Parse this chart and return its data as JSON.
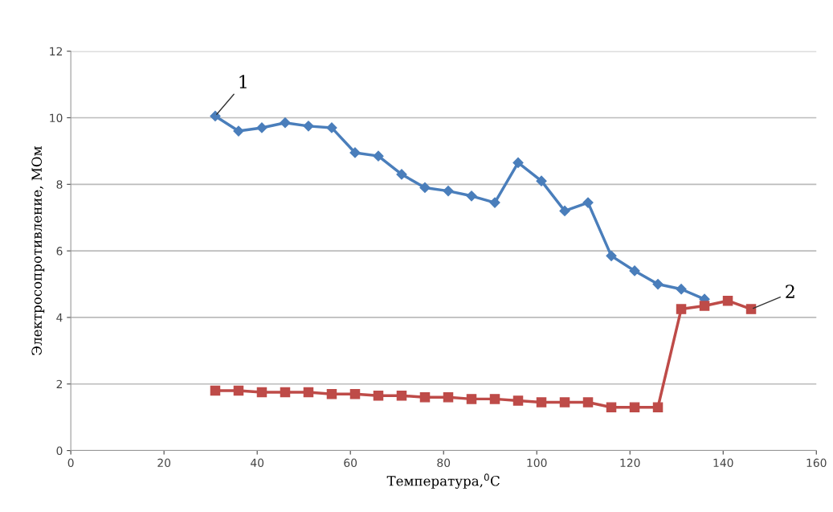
{
  "chart_data": {
    "type": "line",
    "xlabel": "Температура,$^{0}$С",
    "ylabel": "Электросопротивление, МОм",
    "xlim": [
      0,
      160
    ],
    "xticks": [
      0,
      20,
      40,
      60,
      80,
      100,
      120,
      140,
      160
    ],
    "ylim": [
      0,
      12
    ],
    "yticks": [
      0,
      2,
      4,
      6,
      8,
      10,
      12
    ],
    "grid": "y",
    "series": [
      {
        "color": "#4a7ebb",
        "marker": "diamond",
        "x": [
          31,
          36,
          41,
          46,
          51,
          56,
          61,
          66,
          71,
          76,
          81,
          86,
          91,
          96,
          101,
          106,
          111,
          116,
          121,
          126,
          131,
          136
        ],
        "values": [
          10.05,
          9.6,
          9.7,
          9.85,
          9.75,
          9.7,
          8.95,
          8.85,
          8.3,
          7.9,
          7.8,
          7.65,
          7.45,
          8.65,
          8.1,
          7.2,
          7.45,
          5.85,
          5.4,
          5.0,
          4.85,
          4.55
        ]
      },
      {
        "color": "#be4b48",
        "marker": "square",
        "x": [
          31,
          36,
          41,
          46,
          51,
          56,
          61,
          66,
          71,
          76,
          81,
          86,
          91,
          96,
          101,
          106,
          111,
          116,
          121,
          126,
          131,
          136,
          141,
          146
        ],
        "values": [
          1.8,
          1.8,
          1.75,
          1.75,
          1.75,
          1.7,
          1.7,
          1.65,
          1.65,
          1.6,
          1.6,
          1.55,
          1.55,
          1.5,
          1.45,
          1.45,
          1.45,
          1.3,
          1.3,
          1.3,
          4.25,
          4.35,
          4.5,
          4.25
        ]
      }
    ],
    "annotations": [
      {
        "text": "1",
        "x": 31,
        "y": 10.05
      },
      {
        "text": "2",
        "x": 146,
        "y": 4.25
      }
    ]
  }
}
